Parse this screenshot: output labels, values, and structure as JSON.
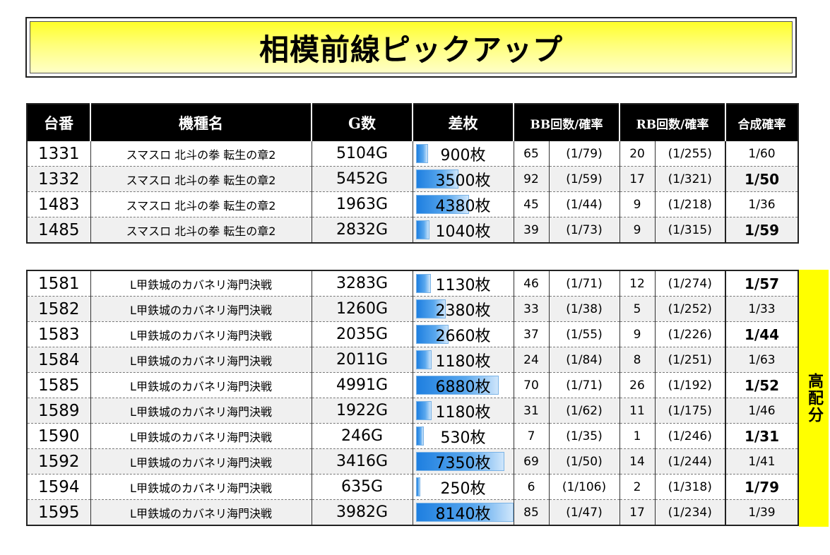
{
  "title": "相模前線ピックアップ",
  "headers": {
    "unit": "台番",
    "machine": "機種名",
    "games": "G数",
    "diff": "差枚",
    "bb": "BB回数/確率",
    "rb": "RB回数/確率",
    "total": "合成確率"
  },
  "side_label": "高配分",
  "colors": {
    "banner": "#ffff2a",
    "bar": "#1e7fe0",
    "side": "#ffff00"
  },
  "table1": [
    {
      "unit": "1331",
      "machine": "スマスロ 北斗の拳 転生の章2",
      "games": "5104G",
      "diff": "900枚",
      "diff_value": 900,
      "bb": "65",
      "bb_rate": "(1/79)",
      "rb": "20",
      "rb_rate": "(1/255)",
      "total": "1/60",
      "bold": false
    },
    {
      "unit": "1332",
      "machine": "スマスロ 北斗の拳 転生の章2",
      "games": "5452G",
      "diff": "3500枚",
      "diff_value": 3500,
      "bb": "92",
      "bb_rate": "(1/59)",
      "rb": "17",
      "rb_rate": "(1/321)",
      "total": "1/50",
      "bold": true
    },
    {
      "unit": "1483",
      "machine": "スマスロ 北斗の拳 転生の章2",
      "games": "1963G",
      "diff": "4380枚",
      "diff_value": 4380,
      "bb": "45",
      "bb_rate": "(1/44)",
      "rb": "9",
      "rb_rate": "(1/218)",
      "total": "1/36",
      "bold": false
    },
    {
      "unit": "1485",
      "machine": "スマスロ 北斗の拳 転生の章2",
      "games": "2832G",
      "diff": "1040枚",
      "diff_value": 1040,
      "bb": "39",
      "bb_rate": "(1/73)",
      "rb": "9",
      "rb_rate": "(1/315)",
      "total": "1/59",
      "bold": true
    }
  ],
  "table2": [
    {
      "unit": "1581",
      "machine": "L甲鉄城のカバネリ海門決戦",
      "games": "3283G",
      "diff": "1130枚",
      "diff_value": 1130,
      "bb": "46",
      "bb_rate": "(1/71)",
      "rb": "12",
      "rb_rate": "(1/274)",
      "total": "1/57",
      "bold": true
    },
    {
      "unit": "1582",
      "machine": "L甲鉄城のカバネリ海門決戦",
      "games": "1260G",
      "diff": "2380枚",
      "diff_value": 2380,
      "bb": "33",
      "bb_rate": "(1/38)",
      "rb": "5",
      "rb_rate": "(1/252)",
      "total": "1/33",
      "bold": false
    },
    {
      "unit": "1583",
      "machine": "L甲鉄城のカバネリ海門決戦",
      "games": "2035G",
      "diff": "2660枚",
      "diff_value": 2660,
      "bb": "37",
      "bb_rate": "(1/55)",
      "rb": "9",
      "rb_rate": "(1/226)",
      "total": "1/44",
      "bold": true
    },
    {
      "unit": "1584",
      "machine": "L甲鉄城のカバネリ海門決戦",
      "games": "2011G",
      "diff": "1180枚",
      "diff_value": 1180,
      "bb": "24",
      "bb_rate": "(1/84)",
      "rb": "8",
      "rb_rate": "(1/251)",
      "total": "1/63",
      "bold": false
    },
    {
      "unit": "1585",
      "machine": "L甲鉄城のカバネリ海門決戦",
      "games": "4991G",
      "diff": "6880枚",
      "diff_value": 6880,
      "bb": "70",
      "bb_rate": "(1/71)",
      "rb": "26",
      "rb_rate": "(1/192)",
      "total": "1/52",
      "bold": true
    },
    {
      "unit": "1589",
      "machine": "L甲鉄城のカバネリ海門決戦",
      "games": "1922G",
      "diff": "1180枚",
      "diff_value": 1180,
      "bb": "31",
      "bb_rate": "(1/62)",
      "rb": "11",
      "rb_rate": "(1/175)",
      "total": "1/46",
      "bold": false
    },
    {
      "unit": "1590",
      "machine": "L甲鉄城のカバネリ海門決戦",
      "games": "246G",
      "diff": "530枚",
      "diff_value": 530,
      "bb": "7",
      "bb_rate": "(1/35)",
      "rb": "1",
      "rb_rate": "(1/246)",
      "total": "1/31",
      "bold": true
    },
    {
      "unit": "1592",
      "machine": "L甲鉄城のカバネリ海門決戦",
      "games": "3416G",
      "diff": "7350枚",
      "diff_value": 7350,
      "bb": "69",
      "bb_rate": "(1/50)",
      "rb": "14",
      "rb_rate": "(1/244)",
      "total": "1/41",
      "bold": false
    },
    {
      "unit": "1594",
      "machine": "L甲鉄城のカバネリ海門決戦",
      "games": "635G",
      "diff": "250枚",
      "diff_value": 250,
      "bb": "6",
      "bb_rate": "(1/106)",
      "rb": "2",
      "rb_rate": "(1/318)",
      "total": "1/79",
      "bold": true
    },
    {
      "unit": "1595",
      "machine": "L甲鉄城のカバネリ海門決戦",
      "games": "3982G",
      "diff": "8140枚",
      "diff_value": 8140,
      "bb": "85",
      "bb_rate": "(1/47)",
      "rb": "17",
      "rb_rate": "(1/234)",
      "total": "1/39",
      "bold": false
    }
  ]
}
